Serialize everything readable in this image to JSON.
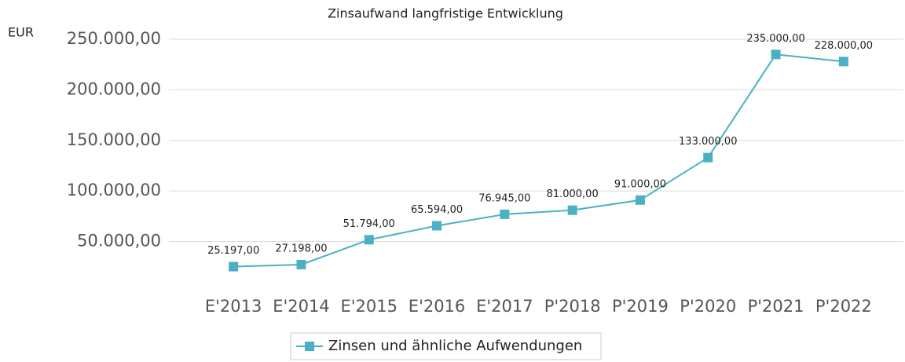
{
  "chart_data": {
    "type": "line",
    "title": "Zinsaufwand langfristige Entwicklung",
    "y_label": "EUR",
    "categories": [
      "E'2013",
      "E'2014",
      "E'2015",
      "E'2016",
      "E'2017",
      "P'2018",
      "P'2019",
      "P'2020",
      "P'2021",
      "P'2022"
    ],
    "series": [
      {
        "name": "Zinsen und ähnliche Aufwendungen",
        "color": "#4bb0c2",
        "values": [
          25197,
          27198,
          51794,
          65594,
          76945,
          81000,
          91000,
          133000,
          235000,
          228000
        ],
        "value_labels": [
          "25.197,00",
          "27.198,00",
          "51.794,00",
          "65.594,00",
          "76.945,00",
          "81.000,00",
          "91.000,00",
          "133.000,00",
          "235.000,00",
          "228.000,00"
        ]
      }
    ],
    "ylim": [
      0,
      250000
    ],
    "yticks": [
      {
        "value": 50000,
        "label": "50.000,00"
      },
      {
        "value": 100000,
        "label": "100.000,00"
      },
      {
        "value": 150000,
        "label": "150.000,00"
      },
      {
        "value": 200000,
        "label": "200.000,00"
      },
      {
        "value": 250000,
        "label": "250.000,00"
      }
    ],
    "grid": true,
    "legend": "bottom"
  }
}
